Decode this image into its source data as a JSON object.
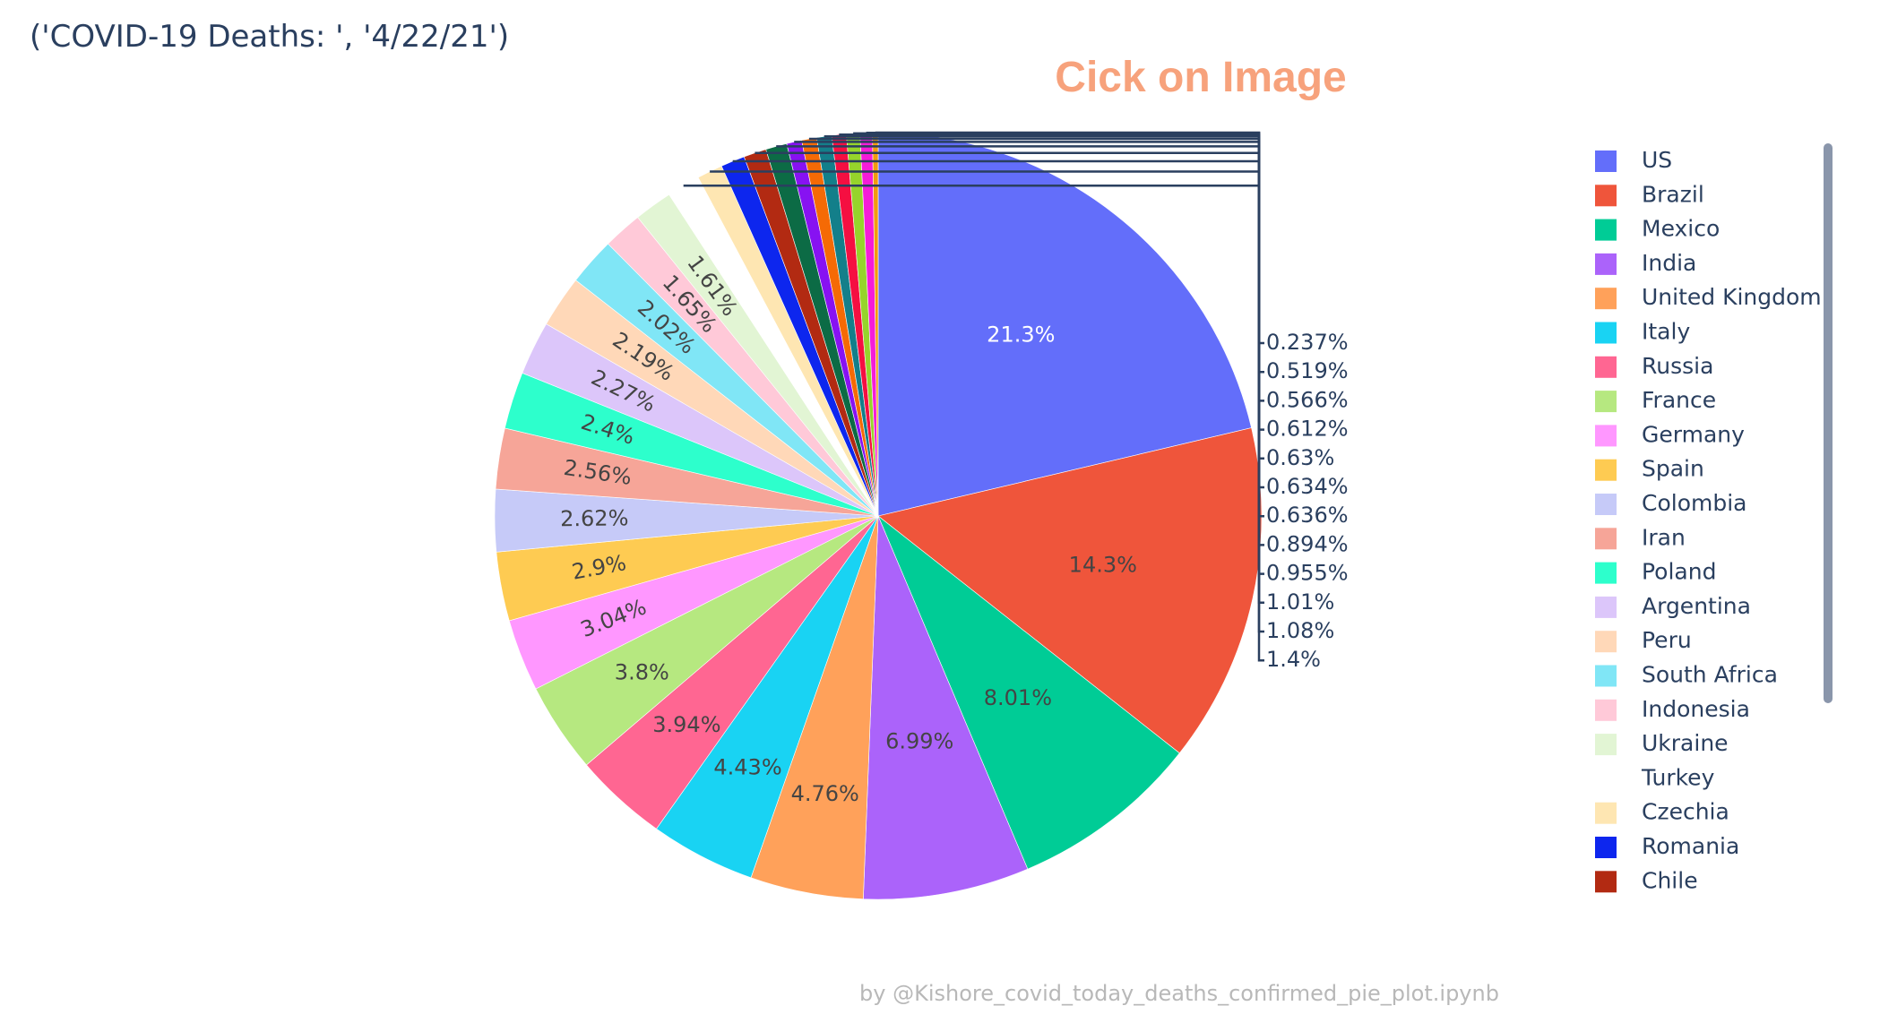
{
  "annotation": "Cick on Image",
  "credit": "by @Kishore_covid_today_deaths_confirmed_pie_plot.ipynb",
  "chart_data": {
    "type": "pie",
    "title": "('COVID-19 Deaths: ', '4/22/21')",
    "legend_position": "right",
    "slices": [
      {
        "label": "US",
        "value": 21.3,
        "text": "21.3%",
        "color": "#636efa"
      },
      {
        "label": "Brazil",
        "value": 14.3,
        "text": "14.3%",
        "color": "#ef553b"
      },
      {
        "label": "Mexico",
        "value": 8.01,
        "text": "8.01%",
        "color": "#00cc96"
      },
      {
        "label": "India",
        "value": 6.99,
        "text": "6.99%",
        "color": "#ab63fa"
      },
      {
        "label": "United Kingdom",
        "value": 4.76,
        "text": "4.76%",
        "color": "#ffa15a"
      },
      {
        "label": "Italy",
        "value": 4.43,
        "text": "4.43%",
        "color": "#19d3f3"
      },
      {
        "label": "Russia",
        "value": 3.94,
        "text": "3.94%",
        "color": "#ff6692"
      },
      {
        "label": "France",
        "value": 3.8,
        "text": "3.8%",
        "color": "#b6e880"
      },
      {
        "label": "Germany",
        "value": 3.04,
        "text": "3.04%",
        "color": "#ff97ff"
      },
      {
        "label": "Spain",
        "value": 2.9,
        "text": "2.9%",
        "color": "#fecb52"
      },
      {
        "label": "Colombia",
        "value": 2.62,
        "text": "2.62%",
        "color": "#c6caf8"
      },
      {
        "label": "Iran",
        "value": 2.56,
        "text": "2.56%",
        "color": "#f6a598"
      },
      {
        "label": "Poland",
        "value": 2.4,
        "text": "2.4%",
        "color": "#2dffcc"
      },
      {
        "label": "Argentina",
        "value": 2.27,
        "text": "2.27%",
        "color": "#dcc6fa"
      },
      {
        "label": "Peru",
        "value": 2.19,
        "text": "2.19%",
        "color": "#ffd8b8"
      },
      {
        "label": "South Africa",
        "value": 2.02,
        "text": "2.02%",
        "color": "#80e6f6"
      },
      {
        "label": "Indonesia",
        "value": 1.65,
        "text": "1.65%",
        "color": "#ffc9d8"
      },
      {
        "label": "Ukraine",
        "value": 1.61,
        "text": "1.61%",
        "color": "#e2f5d4"
      },
      {
        "label": "Turkey",
        "value": 1.4,
        "text": "1.4%",
        "color": "#ffffff"
      },
      {
        "label": "Czechia",
        "value": 1.08,
        "text": "1.08%",
        "color": "#fee6b2"
      },
      {
        "label": "Romania",
        "value": 1.01,
        "text": "1.01%",
        "color": "#0d26ee"
      },
      {
        "label": "Chile",
        "value": 0.955,
        "text": "0.955%",
        "color": "#b22a12"
      },
      {
        "label": "",
        "value": 0.894,
        "text": "0.894%",
        "color": "#0c6b45"
      },
      {
        "label": "",
        "value": 0.636,
        "text": "0.636%",
        "color": "#8712f2"
      },
      {
        "label": "",
        "value": 0.634,
        "text": "0.634%",
        "color": "#f56a05"
      },
      {
        "label": "",
        "value": 0.63,
        "text": "0.63%",
        "color": "#137f8a"
      },
      {
        "label": "",
        "value": 0.612,
        "text": "0.612%",
        "color": "#f50f41"
      },
      {
        "label": "",
        "value": 0.566,
        "text": "0.566%",
        "color": "#96d42b"
      },
      {
        "label": "",
        "value": 0.519,
        "text": "0.519%",
        "color": "#f51cd8"
      },
      {
        "label": "",
        "value": 0.237,
        "text": "0.237%",
        "color": "#f29b0e"
      }
    ]
  }
}
